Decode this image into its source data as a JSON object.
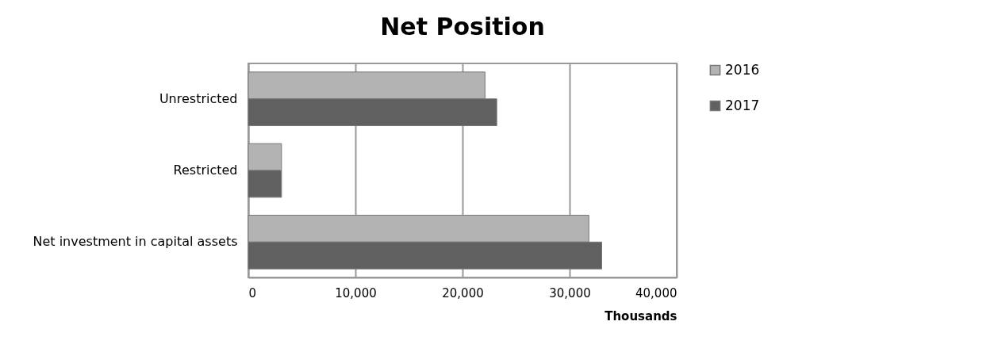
{
  "chart_data": {
    "type": "bar",
    "orientation": "horizontal",
    "title": "Net Position",
    "xlabel": "Thousands",
    "categories": [
      "Unrestricted",
      "Restricted",
      "Net investment in capital assets"
    ],
    "series": [
      {
        "name": "2016",
        "color": "#b3b3b3",
        "values": [
          22100,
          3100,
          31800
        ]
      },
      {
        "name": "2017",
        "color": "#606060",
        "values": [
          23200,
          3100,
          33000
        ]
      }
    ],
    "xlim": [
      0,
      40000
    ],
    "xticks": [
      0,
      {
        "value": 10000,
        "label": "10,000"
      },
      {
        "value": 20000,
        "label": "20,000"
      },
      {
        "value": 30000,
        "label": "30,000"
      },
      {
        "value": 40000,
        "label": "40,000"
      }
    ],
    "grid": "x",
    "legend": "right"
  }
}
